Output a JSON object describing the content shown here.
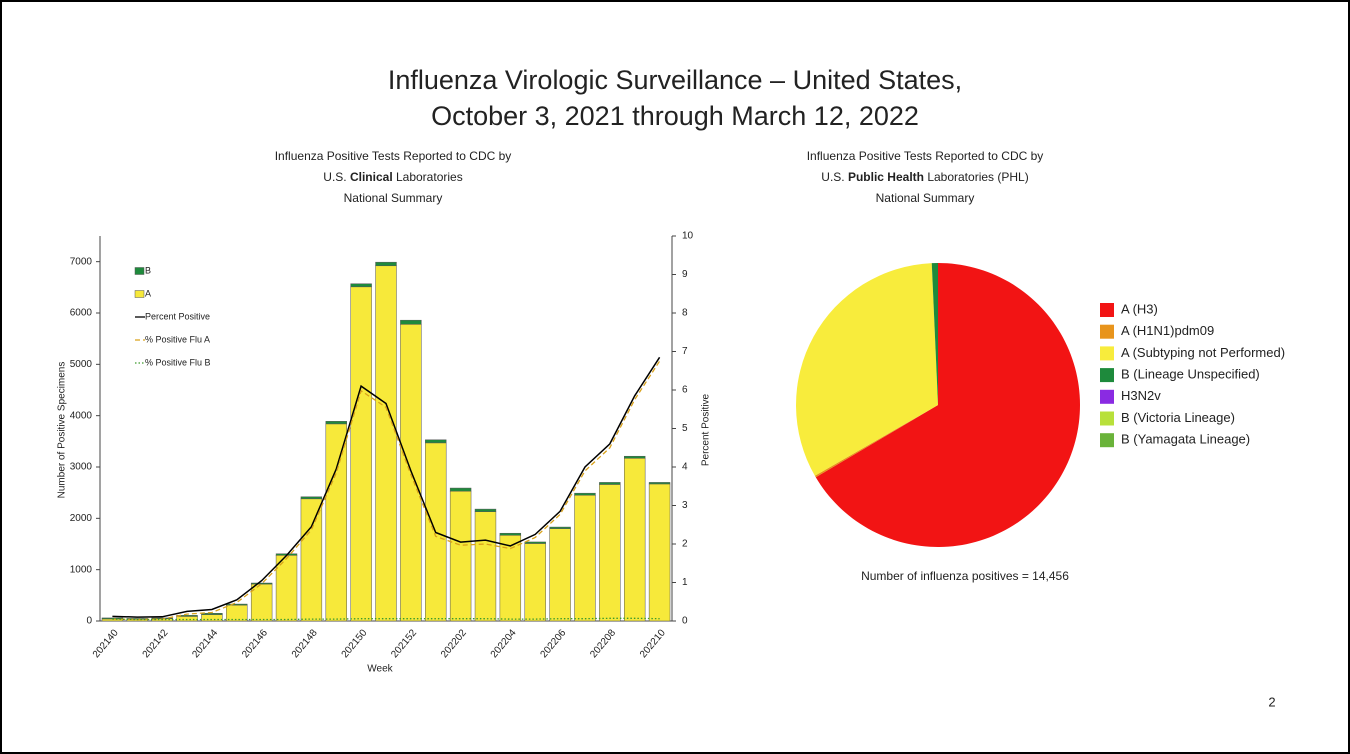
{
  "slide": {
    "title": [
      "Influenza Virologic Surveillance – United States,",
      "October 3, 2021 through March 12, 2022"
    ],
    "page_number": "2"
  },
  "chart_data": [
    {
      "type": "bar",
      "title": [
        [
          {
            "text": "Influenza Positive Tests Reported to CDC by"
          }
        ],
        [
          {
            "text": "U.S. "
          },
          {
            "text": "Clinical",
            "bold": true
          },
          {
            "text": " Laboratories"
          }
        ],
        [
          {
            "text": "National Summary"
          }
        ]
      ],
      "x_label": "Week",
      "y_label": "Number of Positive Specimens",
      "y2_label": "Percent Positive",
      "categories": [
        "202140",
        null,
        "202142",
        null,
        "202144",
        null,
        "202146",
        null,
        "202148",
        null,
        "202150",
        null,
        "202152",
        null,
        "202202",
        null,
        "202204",
        null,
        "202206",
        null,
        "202208",
        null,
        "202210"
      ],
      "series": [
        {
          "name": "B",
          "kind": "bar",
          "color": "#1e8a3c",
          "values": [
            20,
            15,
            15,
            20,
            25,
            20,
            20,
            30,
            40,
            50,
            60,
            70,
            80,
            60,
            60,
            50,
            40,
            30,
            30,
            40,
            40,
            40,
            30
          ]
        },
        {
          "name": "A",
          "kind": "bar",
          "color": "#f7e93a",
          "values": [
            40,
            35,
            45,
            90,
            125,
            310,
            720,
            1280,
            2380,
            3840,
            6510,
            6920,
            5780,
            3470,
            2530,
            2130,
            1670,
            1510,
            1800,
            2450,
            2660,
            3170,
            2670
          ]
        },
        {
          "name": "Percent Positive",
          "kind": "line",
          "axis": "y2",
          "color": "#000000",
          "dash": "solid",
          "values": [
            0.12,
            0.1,
            0.11,
            0.25,
            0.3,
            0.55,
            1.05,
            1.7,
            2.45,
            3.95,
            6.1,
            5.65,
            3.9,
            2.3,
            2.05,
            2.1,
            1.95,
            2.25,
            2.85,
            4.0,
            4.6,
            5.85,
            6.85
          ]
        },
        {
          "name": "% Positive Flu A",
          "kind": "line",
          "axis": "y2",
          "color": "#d9a21b",
          "dash": "dashed",
          "values": [
            0.05,
            0.04,
            0.05,
            0.18,
            0.22,
            0.48,
            0.97,
            1.62,
            2.37,
            3.85,
            5.98,
            5.55,
            3.8,
            2.2,
            1.97,
            2.0,
            1.88,
            2.17,
            2.77,
            3.9,
            4.5,
            5.75,
            6.75
          ]
        },
        {
          "name": "% Positive Flu B",
          "kind": "line",
          "axis": "y2",
          "color": "#3c9a2c",
          "dash": "dotted",
          "values": [
            0.05,
            0.04,
            0.04,
            0.04,
            0.04,
            0.04,
            0.04,
            0.04,
            0.05,
            0.05,
            0.06,
            0.06,
            0.06,
            0.06,
            0.06,
            0.06,
            0.05,
            0.05,
            0.06,
            0.06,
            0.07,
            0.07,
            0.06
          ]
        }
      ],
      "ylim": [
        0,
        7500
      ],
      "yticks": [
        0,
        1000,
        2000,
        3000,
        4000,
        5000,
        6000,
        7000
      ],
      "y2lim": [
        0,
        10
      ],
      "y2ticks": [
        0,
        1,
        2,
        3,
        4,
        5,
        6,
        7,
        8,
        9,
        10
      ],
      "legend": "upper left",
      "grid": false
    },
    {
      "type": "pie",
      "title": [
        [
          {
            "text": "Influenza Positive Tests Reported to CDC by"
          }
        ],
        [
          {
            "text": "U.S. "
          },
          {
            "text": "Public Health",
            "bold": true
          },
          {
            "text": " Laboratories (PHL)"
          }
        ],
        [
          {
            "text": "National Summary"
          }
        ]
      ],
      "categories": [
        "A (H3)",
        "A (H1N1)pdm09",
        "A (Subtyping not Performed)",
        "B (Lineage Unspecified)",
        "H3N2v",
        "B (Victoria Lineage)",
        "B (Yamagata Lineage)"
      ],
      "values": [
        66.5,
        0.2,
        32.6,
        0.7,
        0,
        0,
        0
      ],
      "colors": [
        "#f21414",
        "#e8941c",
        "#f8ec3c",
        "#1e8a3c",
        "#8a2be2",
        "#b8e03a",
        "#6ab33a"
      ],
      "annotation": "Number of influenza positives = 14,456",
      "legend": "right"
    }
  ]
}
